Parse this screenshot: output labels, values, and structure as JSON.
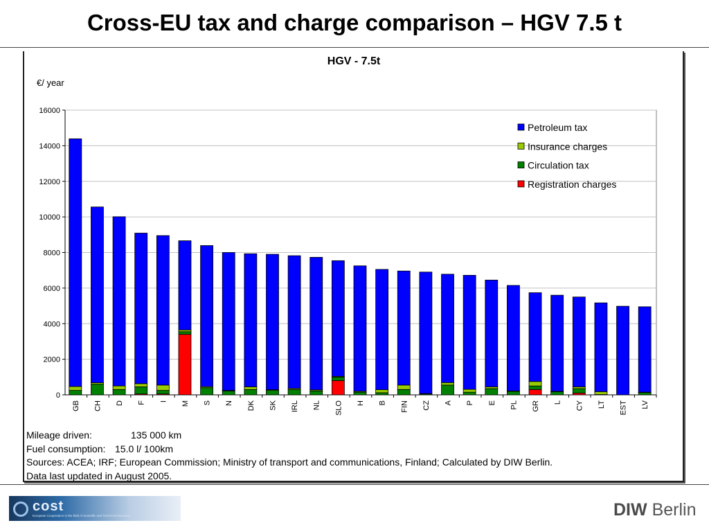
{
  "slide": {
    "title": "Cross-EU tax and charge comparison – HGV 7.5 t"
  },
  "chart_data": {
    "type": "bar",
    "stacked": true,
    "title": "HGV - 7.5t",
    "ylabel": "€/ year",
    "xlabel": "",
    "ylim": [
      0,
      16000
    ],
    "yticks": [
      "0",
      "2000",
      "4000",
      "6000",
      "8000",
      "10000",
      "12000",
      "14000",
      "16000"
    ],
    "grid": true,
    "legend_position": "top-right",
    "categories": [
      "GB",
      "CH",
      "D",
      "F",
      "I",
      "M",
      "S",
      "N",
      "DK",
      "SK",
      "IRL",
      "NL",
      "SLO",
      "H",
      "B",
      "FIN",
      "CZ",
      "A",
      "P",
      "E",
      "PL",
      "GR",
      "L",
      "CY",
      "LT",
      "EST",
      "LV"
    ],
    "series": [
      {
        "name": "Registration charges",
        "color": "#ff0000",
        "values": [
          0,
          0,
          0,
          50,
          50,
          3400,
          0,
          0,
          0,
          0,
          0,
          0,
          800,
          0,
          0,
          0,
          0,
          0,
          0,
          0,
          0,
          300,
          0,
          100,
          0,
          0,
          0
        ]
      },
      {
        "name": "Circulation tax",
        "color": "#008000",
        "values": [
          250,
          600,
          300,
          400,
          200,
          150,
          400,
          220,
          300,
          250,
          300,
          220,
          200,
          150,
          120,
          300,
          50,
          550,
          150,
          350,
          200,
          200,
          180,
          250,
          20,
          0,
          130
        ]
      },
      {
        "name": "Insurance charges",
        "color": "#99cc00",
        "values": [
          220,
          80,
          200,
          180,
          300,
          100,
          60,
          30,
          150,
          40,
          60,
          60,
          40,
          50,
          170,
          250,
          20,
          140,
          160,
          100,
          20,
          250,
          20,
          100,
          160,
          0,
          20
        ]
      },
      {
        "name": "Petroleum tax",
        "color": "#0000ff",
        "values": [
          13920,
          9880,
          9510,
          8460,
          8400,
          5010,
          7930,
          7750,
          7480,
          7610,
          7460,
          7450,
          6500,
          7050,
          6760,
          6410,
          6830,
          6090,
          6410,
          6000,
          5930,
          4990,
          5400,
          5050,
          4990,
          4980,
          4800
        ]
      }
    ],
    "legend_order": [
      "Petroleum tax",
      "Insurance charges",
      "Circulation tax",
      "Registration charges"
    ]
  },
  "notes": {
    "mileage_label": "Mileage driven:",
    "mileage_value": "135 000 km",
    "fuel_label": "Fuel consumption:",
    "fuel_value": "15.0 l/ 100km",
    "sources": "Sources: ACEA; IRF; European Commission; Ministry of transport and communications, Finland; Calculated by DIW Berlin.",
    "updated": "Data last updated in August 2005."
  },
  "logos": {
    "cost_word": "cost",
    "cost_subtitle": "European Cooperation in the field of Scientific and Technical Research",
    "diw_bold": "DIW",
    "diw_rest": "Berlin"
  }
}
